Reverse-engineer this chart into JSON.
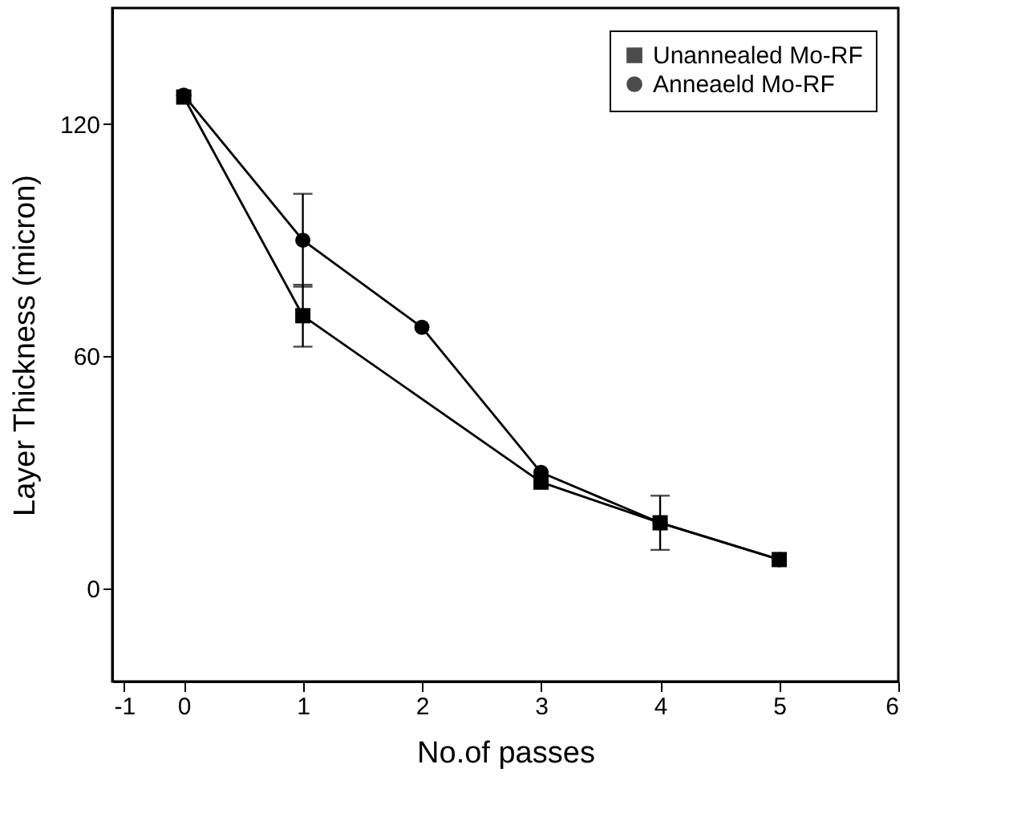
{
  "chart_data": {
    "type": "line",
    "xlabel": "No.of passes",
    "ylabel": "Layer Thickness (micron)",
    "xlim": [
      -0.6,
      6
    ],
    "xticks": [
      {
        "value": -0.5,
        "label": "-1"
      },
      0,
      1,
      2,
      3,
      4,
      5,
      6
    ],
    "ylim": [
      -24,
      150
    ],
    "yticks": [
      0,
      60,
      120
    ],
    "grid": false,
    "legend": "top right",
    "line_style": "solid",
    "series": [
      {
        "name": "Unannealed Mo-RF",
        "color": "#000000",
        "marker": "square",
        "x": [
          0,
          1,
          3,
          4,
          5
        ],
        "values": [
          127,
          70.5,
          27.5,
          17,
          7.5
        ],
        "errors": [
          null,
          8,
          null,
          null,
          null
        ]
      },
      {
        "name": "Anneaeld Mo-RF",
        "color": "#000000",
        "marker": "circle",
        "x": [
          0,
          1,
          2,
          3,
          4,
          5
        ],
        "values": [
          127.5,
          90,
          67.5,
          30,
          17,
          7.5
        ],
        "errors": [
          null,
          12,
          null,
          null,
          7,
          null
        ]
      }
    ]
  }
}
